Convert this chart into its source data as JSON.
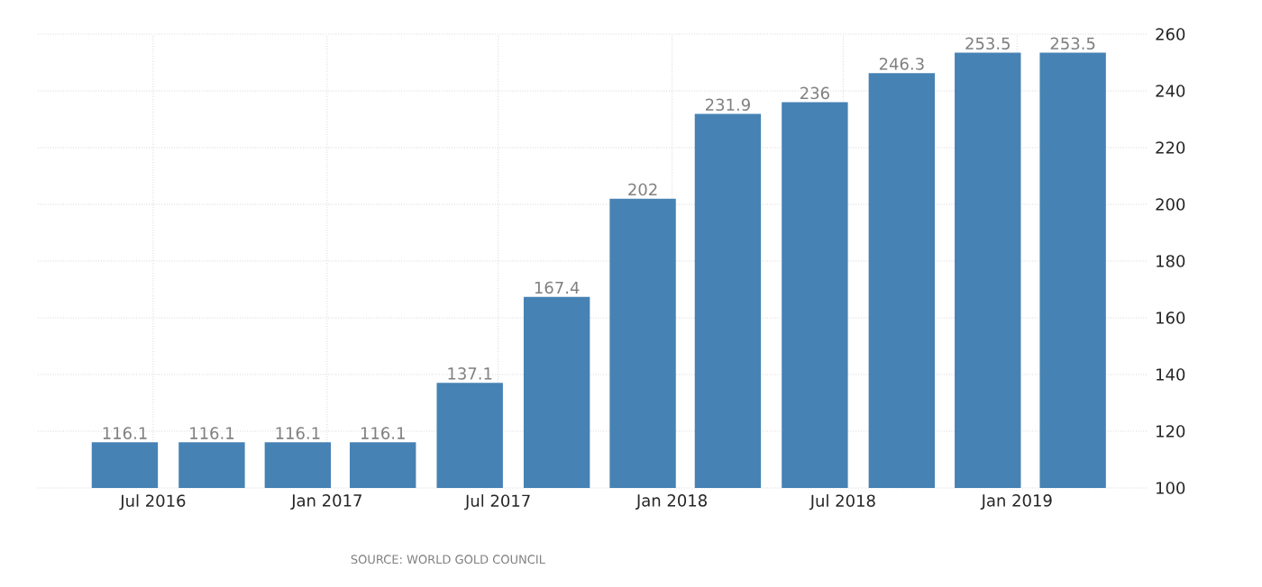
{
  "chart_data": {
    "type": "bar",
    "x": [
      "2016-06",
      "2016-09",
      "2016-12",
      "2017-03",
      "2017-06",
      "2017-09",
      "2017-12",
      "2018-03",
      "2018-06",
      "2018-09",
      "2018-12",
      "2019-03"
    ],
    "values": [
      116.1,
      116.1,
      116.1,
      116.1,
      137.1,
      167.4,
      202,
      231.9,
      236,
      246.3,
      253.5,
      253.5
    ],
    "color": "#4682b4",
    "xlim": [
      "2016-03-01",
      "2019-05-20"
    ],
    "xticks": [
      {
        "value": "2016-07",
        "label": "Jul 2016"
      },
      {
        "value": "2017-01",
        "label": "Jan 2017"
      },
      {
        "value": "2017-07",
        "label": "Jul 2017"
      },
      {
        "value": "2018-01",
        "label": "Jan 2018"
      },
      {
        "value": "2018-07",
        "label": "Jul 2018"
      },
      {
        "value": "2019-01",
        "label": "Jan 2019"
      }
    ],
    "ylim": [
      100,
      260
    ],
    "yticks": [
      100,
      120,
      140,
      160,
      180,
      200,
      220,
      240,
      260
    ],
    "grid": true,
    "data_labels": true,
    "annotations": [
      "SOURCE: WORLD GOLD COUNCIL"
    ]
  }
}
